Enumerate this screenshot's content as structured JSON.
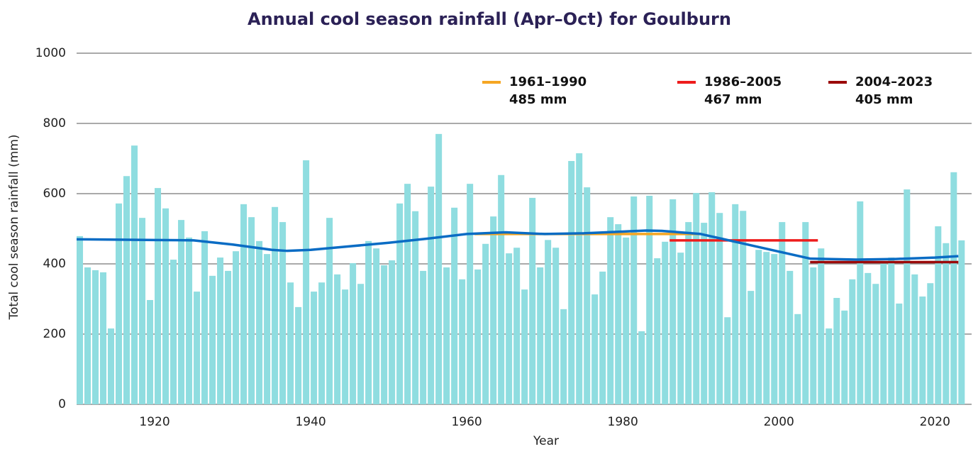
{
  "chart_data": {
    "type": "bar",
    "title": "Annual cool season rainfall (Apr–Oct) for Goulburn",
    "xlabel": "Year",
    "ylabel": "Total cool season rainfall (mm)",
    "color": "#8fdde0",
    "x": [
      1910,
      1911,
      1912,
      1913,
      1914,
      1915,
      1916,
      1917,
      1918,
      1919,
      1920,
      1921,
      1922,
      1923,
      1924,
      1925,
      1926,
      1927,
      1928,
      1929,
      1930,
      1931,
      1932,
      1933,
      1934,
      1935,
      1936,
      1937,
      1938,
      1939,
      1940,
      1941,
      1942,
      1943,
      1944,
      1945,
      1946,
      1947,
      1948,
      1949,
      1950,
      1951,
      1952,
      1953,
      1954,
      1955,
      1956,
      1957,
      1958,
      1959,
      1960,
      1961,
      1962,
      1963,
      1964,
      1965,
      1966,
      1967,
      1968,
      1969,
      1970,
      1971,
      1972,
      1973,
      1974,
      1975,
      1976,
      1977,
      1978,
      1979,
      1980,
      1981,
      1982,
      1983,
      1984,
      1985,
      1986,
      1987,
      1988,
      1989,
      1990,
      1991,
      1992,
      1993,
      1994,
      1995,
      1996,
      1997,
      1998,
      1999,
      2000,
      2001,
      2002,
      2003,
      2004,
      2005,
      2006,
      2007,
      2008,
      2009,
      2010,
      2011,
      2012,
      2013,
      2014,
      2015,
      2016,
      2017,
      2018,
      2019,
      2020,
      2021,
      2022,
      2023
    ],
    "values": [
      479,
      390,
      382,
      376,
      216,
      572,
      650,
      737,
      531,
      297,
      616,
      558,
      412,
      525,
      475,
      321,
      493,
      366,
      418,
      380,
      436,
      570,
      533,
      465,
      428,
      562,
      519,
      347,
      277,
      695,
      321,
      347,
      531,
      370,
      327,
      402,
      343,
      465,
      444,
      396,
      410,
      572,
      628,
      550,
      380,
      620,
      770,
      390,
      560,
      356,
      628,
      384,
      457,
      535,
      653,
      430,
      446,
      327,
      588,
      390,
      468,
      446,
      271,
      693,
      715,
      618,
      313,
      378,
      533,
      513,
      475,
      592,
      208,
      594,
      416,
      463,
      584,
      432,
      519,
      602,
      517,
      604,
      545,
      248,
      570,
      551,
      323,
      440,
      434,
      428,
      519,
      380,
      257,
      519,
      390,
      444,
      216,
      303,
      267,
      356,
      578,
      374,
      343,
      400,
      418,
      287,
      612,
      370,
      307,
      345,
      507,
      459,
      661,
      467
    ],
    "xlim": [
      1910,
      2024.7
    ],
    "xticks": [
      1920,
      1940,
      1960,
      1980,
      2000,
      2020
    ],
    "ylim": [
      0,
      1000
    ],
    "yticks": [
      0,
      200,
      400,
      600,
      800,
      1000
    ],
    "grid": true,
    "trend": {
      "color": "#0a6cc4",
      "x": [
        1910,
        1920,
        1925,
        1930,
        1935,
        1937,
        1940,
        1945,
        1950,
        1955,
        1960,
        1965,
        1970,
        1975,
        1980,
        1983,
        1985,
        1990,
        1995,
        2000,
        2004,
        2010,
        2015,
        2020,
        2023
      ],
      "values": [
        470,
        468,
        467,
        455,
        440,
        437,
        440,
        450,
        460,
        472,
        485,
        490,
        485,
        487,
        492,
        495,
        494,
        485,
        460,
        435,
        415,
        412,
        414,
        418,
        422
      ]
    },
    "periods": [
      {
        "name": "1961–1990",
        "label": "485 mm",
        "color": "#f5a623",
        "x": [
          1961,
          1990
        ],
        "value": 485
      },
      {
        "name": "1986–2005",
        "label": "467 mm",
        "color": "#ee1c1c",
        "x": [
          1986,
          2005
        ],
        "value": 467
      },
      {
        "name": "2004–2023",
        "label": "405 mm",
        "color": "#9b0a0a",
        "x": [
          2004,
          2023
        ],
        "value": 405
      }
    ]
  }
}
